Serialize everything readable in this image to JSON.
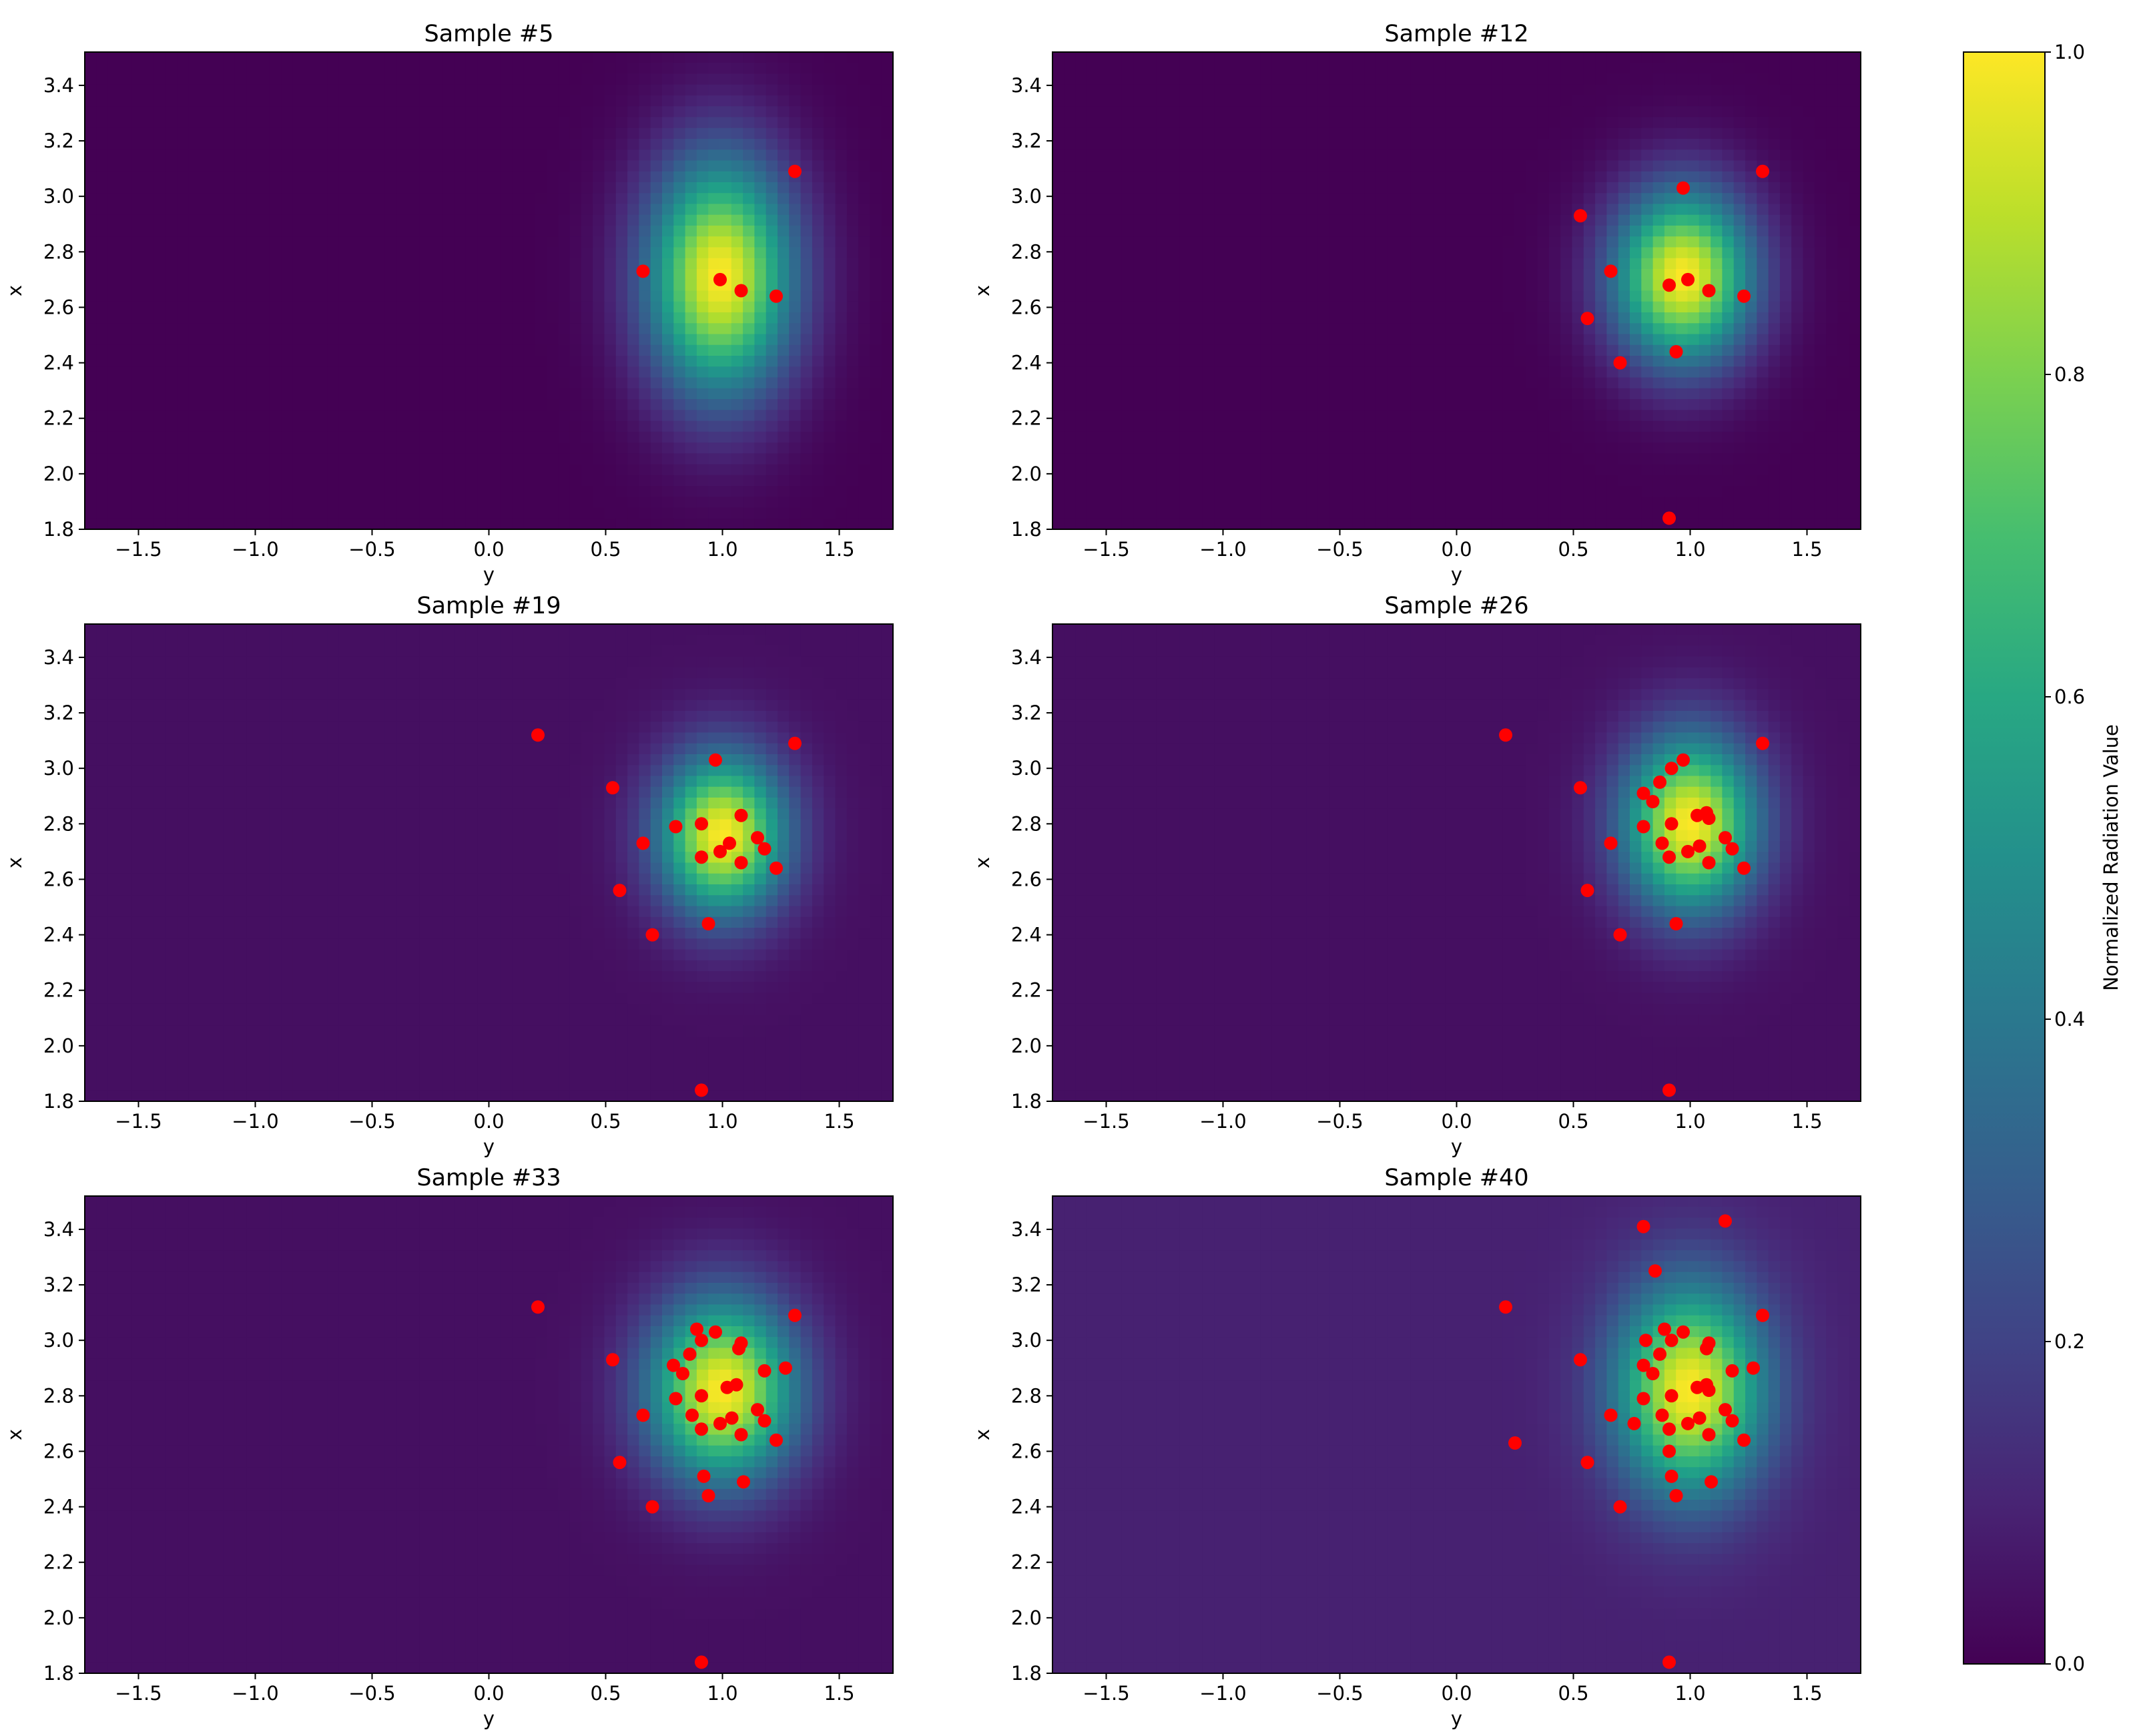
{
  "colors": {
    "colormap": "viridis",
    "point_color": "#ff0000",
    "axes_edge": "#000000",
    "background": "#ffffff"
  },
  "colorbar": {
    "label": "Normalized Radiation Value",
    "range": [
      0.0,
      1.0
    ],
    "ticks": [
      0.0,
      0.2,
      0.4,
      0.6,
      0.8,
      1.0
    ],
    "tick_labels": [
      "0.0",
      "0.2",
      "0.4",
      "0.6",
      "0.8",
      "1.0"
    ]
  },
  "chart_data": [
    {
      "type": "heatmap",
      "title": "Sample #5",
      "xlabel": "y",
      "ylabel": "x",
      "xlim": [
        -1.73,
        1.73
      ],
      "ylim": [
        1.8,
        3.52
      ],
      "xticks": [
        "−1.5",
        "−1.0",
        "−0.5",
        "0.0",
        "0.5",
        "1.0",
        "1.5"
      ],
      "yticks": [
        "1.8",
        "2.0",
        "2.2",
        "2.4",
        "2.6",
        "2.8",
        "3.0",
        "3.2",
        "3.4"
      ],
      "field": {
        "center_y": 0.99,
        "center_x": 2.71,
        "sigma_y": 0.22,
        "sigma_x": 0.3,
        "floor": 0.0
      },
      "points": [
        [
          0.66,
          2.73
        ],
        [
          0.99,
          2.7
        ],
        [
          1.08,
          2.66
        ],
        [
          1.23,
          2.64
        ],
        [
          1.31,
          3.09
        ]
      ]
    },
    {
      "type": "heatmap",
      "title": "Sample #12",
      "xlabel": "y",
      "ylabel": "x",
      "xlim": [
        -1.73,
        1.73
      ],
      "ylim": [
        1.8,
        3.52
      ],
      "xticks": [
        "−1.5",
        "−1.0",
        "−0.5",
        "0.0",
        "0.5",
        "1.0",
        "1.5"
      ],
      "yticks": [
        "1.8",
        "2.0",
        "2.2",
        "2.4",
        "2.6",
        "2.8",
        "3.0",
        "3.2",
        "3.4"
      ],
      "field": {
        "center_y": 0.97,
        "center_x": 2.71,
        "sigma_y": 0.21,
        "sigma_x": 0.22,
        "floor": 0.0
      },
      "points": [
        [
          0.53,
          2.93
        ],
        [
          0.56,
          2.56
        ],
        [
          0.66,
          2.73
        ],
        [
          0.7,
          2.4
        ],
        [
          0.91,
          2.68
        ],
        [
          0.94,
          2.44
        ],
        [
          0.97,
          3.03
        ],
        [
          0.99,
          2.7
        ],
        [
          1.08,
          2.66
        ],
        [
          1.23,
          2.64
        ],
        [
          1.31,
          3.09
        ],
        [
          0.91,
          1.84
        ]
      ]
    },
    {
      "type": "heatmap",
      "title": "Sample #19",
      "xlabel": "y",
      "ylabel": "x",
      "xlim": [
        -1.73,
        1.73
      ],
      "ylim": [
        1.8,
        3.52
      ],
      "xticks": [
        "−1.5",
        "−1.0",
        "−0.5",
        "0.0",
        "0.5",
        "1.0",
        "1.5"
      ],
      "yticks": [
        "1.8",
        "2.0",
        "2.2",
        "2.4",
        "2.6",
        "2.8",
        "3.0",
        "3.2",
        "3.4"
      ],
      "field": {
        "center_y": 1.0,
        "center_x": 2.76,
        "sigma_y": 0.19,
        "sigma_x": 0.2,
        "floor": 0.04
      },
      "points": [
        [
          0.21,
          3.12
        ],
        [
          0.53,
          2.93
        ],
        [
          0.56,
          2.56
        ],
        [
          0.66,
          2.73
        ],
        [
          0.7,
          2.4
        ],
        [
          0.8,
          2.79
        ],
        [
          0.91,
          2.8
        ],
        [
          0.91,
          2.68
        ],
        [
          0.94,
          2.44
        ],
        [
          0.97,
          3.03
        ],
        [
          0.99,
          2.7
        ],
        [
          1.03,
          2.73
        ],
        [
          1.08,
          2.83
        ],
        [
          1.08,
          2.66
        ],
        [
          1.15,
          2.75
        ],
        [
          1.18,
          2.71
        ],
        [
          1.23,
          2.64
        ],
        [
          1.31,
          3.09
        ],
        [
          0.91,
          1.84
        ]
      ]
    },
    {
      "type": "heatmap",
      "title": "Sample #26",
      "xlabel": "y",
      "ylabel": "x",
      "xlim": [
        -1.73,
        1.73
      ],
      "ylim": [
        1.8,
        3.52
      ],
      "xticks": [
        "−1.5",
        "−1.0",
        "−0.5",
        "0.0",
        "0.5",
        "1.0",
        "1.5"
      ],
      "yticks": [
        "1.8",
        "2.0",
        "2.2",
        "2.4",
        "2.6",
        "2.8",
        "3.0",
        "3.2",
        "3.4"
      ],
      "field": {
        "center_y": 1.0,
        "center_x": 2.8,
        "sigma_y": 0.2,
        "sigma_x": 0.22,
        "floor": 0.04
      },
      "points": [
        [
          0.21,
          3.12
        ],
        [
          0.53,
          2.93
        ],
        [
          0.56,
          2.56
        ],
        [
          0.66,
          2.73
        ],
        [
          0.7,
          2.4
        ],
        [
          0.8,
          2.91
        ],
        [
          0.8,
          2.79
        ],
        [
          0.84,
          2.88
        ],
        [
          0.87,
          2.95
        ],
        [
          0.88,
          2.73
        ],
        [
          0.91,
          2.68
        ],
        [
          0.92,
          3.0
        ],
        [
          0.92,
          2.8
        ],
        [
          0.94,
          2.44
        ],
        [
          0.97,
          3.03
        ],
        [
          0.99,
          2.7
        ],
        [
          1.03,
          2.83
        ],
        [
          1.04,
          2.72
        ],
        [
          1.07,
          2.84
        ],
        [
          1.08,
          2.82
        ],
        [
          1.08,
          2.66
        ],
        [
          1.15,
          2.75
        ],
        [
          1.18,
          2.71
        ],
        [
          1.23,
          2.64
        ],
        [
          1.31,
          3.09
        ],
        [
          0.91,
          1.84
        ]
      ]
    },
    {
      "type": "heatmap",
      "title": "Sample #33",
      "xlabel": "y",
      "ylabel": "x",
      "xlim": [
        -1.73,
        1.73
      ],
      "ylim": [
        1.8,
        3.52
      ],
      "xticks": [
        "−1.5",
        "−1.0",
        "−0.5",
        "0.0",
        "0.5",
        "1.0",
        "1.5"
      ],
      "yticks": [
        "1.8",
        "2.0",
        "2.2",
        "2.4",
        "2.6",
        "2.8",
        "3.0",
        "3.2",
        "3.4"
      ],
      "field": {
        "center_y": 1.0,
        "center_x": 2.82,
        "sigma_y": 0.22,
        "sigma_x": 0.23,
        "floor": 0.04
      },
      "points": [
        [
          0.21,
          3.12
        ],
        [
          0.53,
          2.93
        ],
        [
          0.56,
          2.56
        ],
        [
          0.66,
          2.73
        ],
        [
          0.7,
          2.4
        ],
        [
          0.79,
          2.91
        ],
        [
          0.8,
          2.79
        ],
        [
          0.83,
          2.88
        ],
        [
          0.86,
          2.95
        ],
        [
          0.87,
          2.73
        ],
        [
          0.89,
          3.04
        ],
        [
          0.91,
          3.0
        ],
        [
          0.91,
          2.8
        ],
        [
          0.91,
          2.68
        ],
        [
          0.92,
          2.51
        ],
        [
          0.94,
          2.44
        ],
        [
          0.97,
          3.03
        ],
        [
          0.99,
          2.7
        ],
        [
          1.02,
          2.83
        ],
        [
          1.04,
          2.72
        ],
        [
          1.06,
          2.84
        ],
        [
          1.07,
          2.97
        ],
        [
          1.08,
          2.99
        ],
        [
          1.08,
          2.66
        ],
        [
          1.09,
          2.49
        ],
        [
          1.15,
          2.75
        ],
        [
          1.18,
          2.89
        ],
        [
          1.18,
          2.71
        ],
        [
          1.23,
          2.64
        ],
        [
          1.27,
          2.9
        ],
        [
          1.31,
          3.09
        ],
        [
          0.91,
          1.84
        ]
      ]
    },
    {
      "type": "heatmap",
      "title": "Sample #40",
      "xlabel": "y",
      "ylabel": "x",
      "xlim": [
        -1.73,
        1.73
      ],
      "ylim": [
        1.8,
        3.52
      ],
      "xticks": [
        "−1.5",
        "−1.0",
        "−0.5",
        "0.0",
        "0.5",
        "1.0",
        "1.5"
      ],
      "yticks": [
        "1.8",
        "2.0",
        "2.2",
        "2.4",
        "2.6",
        "2.8",
        "3.0",
        "3.2",
        "3.4"
      ],
      "field": {
        "center_y": 1.0,
        "center_x": 2.82,
        "sigma_y": 0.22,
        "sigma_x": 0.26,
        "floor": 0.09
      },
      "points": [
        [
          0.21,
          3.12
        ],
        [
          0.25,
          2.63
        ],
        [
          0.53,
          2.93
        ],
        [
          0.56,
          2.56
        ],
        [
          0.66,
          2.73
        ],
        [
          0.7,
          2.4
        ],
        [
          0.76,
          2.7
        ],
        [
          0.8,
          2.91
        ],
        [
          0.8,
          2.79
        ],
        [
          0.8,
          3.41
        ],
        [
          0.81,
          3.0
        ],
        [
          0.84,
          2.88
        ],
        [
          0.85,
          3.25
        ],
        [
          0.87,
          2.95
        ],
        [
          0.88,
          2.73
        ],
        [
          0.89,
          3.04
        ],
        [
          0.91,
          2.68
        ],
        [
          0.91,
          2.6
        ],
        [
          0.92,
          3.0
        ],
        [
          0.92,
          2.8
        ],
        [
          0.92,
          2.51
        ],
        [
          0.94,
          2.44
        ],
        [
          0.97,
          3.03
        ],
        [
          0.99,
          2.7
        ],
        [
          1.03,
          2.83
        ],
        [
          1.04,
          2.72
        ],
        [
          1.07,
          2.84
        ],
        [
          1.07,
          2.97
        ],
        [
          1.08,
          2.99
        ],
        [
          1.08,
          2.82
        ],
        [
          1.08,
          2.66
        ],
        [
          1.09,
          2.49
        ],
        [
          1.15,
          2.75
        ],
        [
          1.15,
          3.43
        ],
        [
          1.18,
          2.89
        ],
        [
          1.18,
          2.71
        ],
        [
          1.23,
          2.64
        ],
        [
          1.27,
          2.9
        ],
        [
          1.31,
          3.09
        ],
        [
          0.91,
          1.84
        ]
      ]
    }
  ]
}
